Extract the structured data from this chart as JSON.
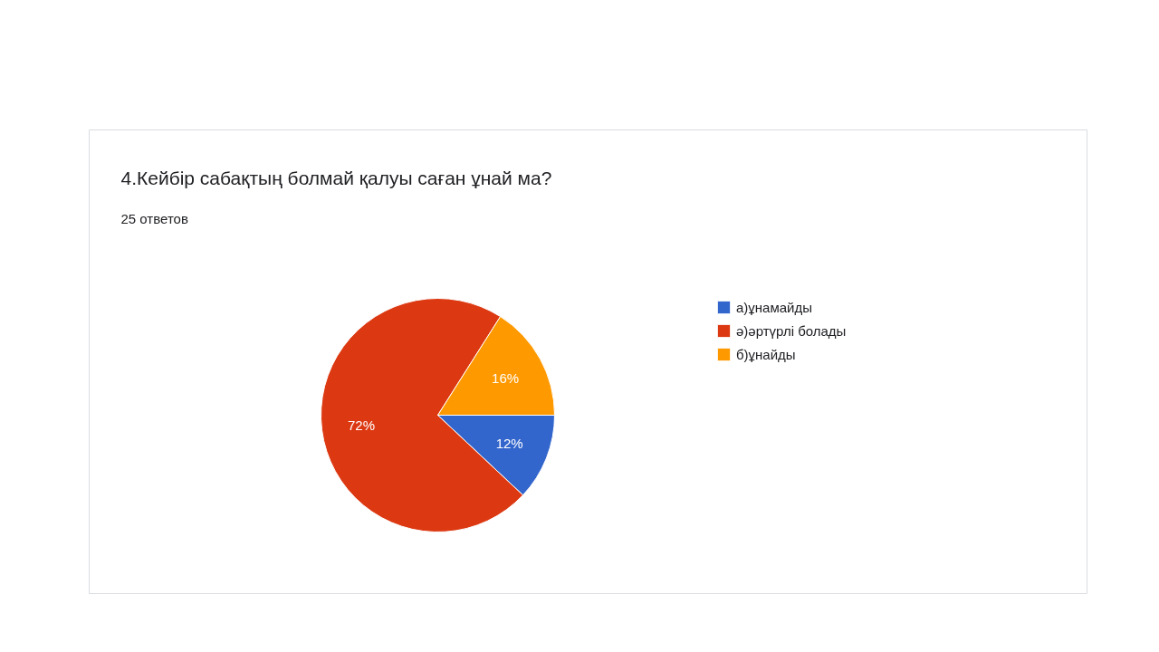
{
  "chart_data": {
    "type": "pie",
    "title": "4.Кейбір сабақтың болмай қалуы саған ұнай ма?",
    "subtitle": "25 ответов",
    "categories": [
      "а)ұнамайды",
      "ә)әртүрлі болады",
      "б)ұнайды"
    ],
    "values": [
      12,
      72,
      16
    ],
    "colors": [
      "#3366cc",
      "#dc3912",
      "#ff9900"
    ],
    "value_labels": [
      "12%",
      "72%",
      "16%"
    ],
    "legend": "right"
  }
}
